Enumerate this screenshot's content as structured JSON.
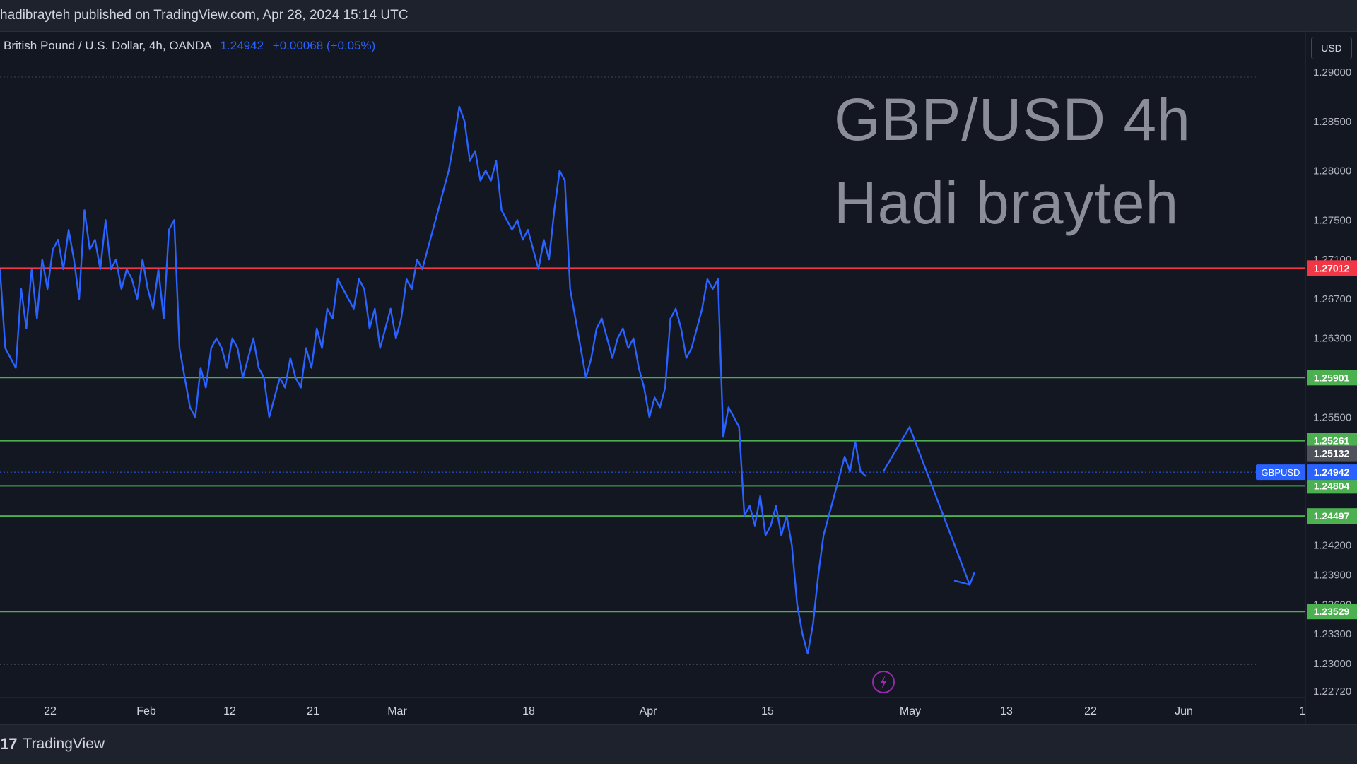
{
  "header": {
    "published_text": "hadibrayteh published on TradingView.com, Apr 28, 2024 15:14 UTC"
  },
  "legend": {
    "symbol": "British Pound / U.S. Dollar, 4h, OANDA",
    "price": "1.24942",
    "change": "+0.00068 (+0.05%)"
  },
  "currency_button": "USD",
  "watermark": {
    "line1": "GBP/USD 4h",
    "line2": "Hadi brayteh"
  },
  "footer": {
    "brand": "TradingView",
    "logo_glyph": "17"
  },
  "icons": {
    "lightning": "lightning-icon",
    "logo": "tradingview-logo-icon"
  },
  "colors": {
    "background": "#131722",
    "price_line": "#2962ff",
    "resistance": "#f23645",
    "support": "#4caf50",
    "badge_gray": "#4f525a"
  },
  "chart_data": {
    "type": "line",
    "title": "",
    "xlabel": "",
    "ylabel": "",
    "ylim": [
      1.2272,
      1.2938
    ],
    "x_ticks": [
      "22",
      "Feb",
      "12",
      "21",
      "Mar",
      "18",
      "Apr",
      "15",
      "May",
      "13",
      "22",
      "Jun",
      "1"
    ],
    "y_ticks": [
      "1.29000",
      "1.28500",
      "1.28000",
      "1.27500",
      "1.27100",
      "1.26700",
      "1.26300",
      "1.25500",
      "1.24200",
      "1.23900",
      "1.23600",
      "1.23300",
      "1.23000",
      "1.22720"
    ],
    "series": [
      {
        "values": [
          1.27,
          1.262,
          1.261,
          1.26,
          1.268,
          1.264,
          1.27,
          1.265,
          1.271,
          1.268,
          1.272,
          1.273,
          1.27,
          1.274,
          1.271,
          1.267,
          1.276,
          1.272,
          1.273,
          1.27,
          1.275,
          1.27,
          1.271,
          1.268,
          1.27,
          1.269,
          1.267,
          1.271,
          1.268,
          1.266,
          1.27,
          1.265,
          1.274,
          1.275,
          1.262,
          1.259,
          1.256,
          1.255,
          1.26,
          1.258,
          1.262,
          1.263,
          1.262,
          1.26,
          1.263,
          1.262,
          1.259,
          1.261,
          1.263,
          1.26,
          1.259,
          1.255,
          1.257,
          1.259,
          1.258,
          1.261,
          1.259,
          1.258,
          1.262,
          1.26,
          1.264,
          1.262,
          1.266,
          1.265,
          1.269,
          1.268,
          1.267,
          1.266,
          1.269,
          1.268,
          1.264,
          1.266,
          1.262,
          1.264,
          1.266,
          1.263,
          1.265,
          1.269,
          1.268,
          1.271,
          1.27,
          1.272,
          1.274,
          1.276,
          1.278,
          1.28,
          1.283,
          1.2865,
          1.285,
          1.281,
          1.282,
          1.279,
          1.28,
          1.279,
          1.281,
          1.276,
          1.275,
          1.274,
          1.275,
          1.273,
          1.274,
          1.272,
          1.27,
          1.273,
          1.271,
          1.276,
          1.28,
          1.279,
          1.268,
          1.265,
          1.262,
          1.259,
          1.261,
          1.264,
          1.265,
          1.263,
          1.261,
          1.263,
          1.264,
          1.262,
          1.263,
          1.26,
          1.258,
          1.255,
          1.257,
          1.256,
          1.258,
          1.265,
          1.266,
          1.264,
          1.261,
          1.262,
          1.264,
          1.266,
          1.269,
          1.268,
          1.269,
          1.253,
          1.256,
          1.255,
          1.254,
          1.245,
          1.246,
          1.244,
          1.247,
          1.243,
          1.244,
          1.246,
          1.243,
          1.245,
          1.242,
          1.236,
          1.233,
          1.231,
          1.234,
          1.239,
          1.243,
          1.245,
          1.247,
          1.249,
          1.251,
          1.2495,
          1.2525,
          1.2495,
          1.249
        ]
      }
    ],
    "horizontal_levels": [
      {
        "value": 1.27012,
        "label": "1.27012",
        "color": "#f23645"
      },
      {
        "value": 1.25901,
        "label": "1.25901",
        "color": "#4caf50"
      },
      {
        "value": 1.25261,
        "label": "1.25261",
        "color": "#4caf50"
      },
      {
        "value": 1.24804,
        "label": "1.24804",
        "color": "#4caf50"
      },
      {
        "value": 1.24497,
        "label": "1.24497",
        "color": "#4caf50"
      },
      {
        "value": 1.23529,
        "label": "1.23529",
        "color": "#4caf50"
      }
    ],
    "other_price_labels": [
      {
        "value": 1.25132,
        "label": "1.25132",
        "color": "#4f525a"
      },
      {
        "value": 1.24942,
        "label": "1.24942",
        "color": "#2962ff"
      }
    ],
    "current_symbol_badge": "GBPUSD",
    "projection": [
      [
        1.2495,
        1.2495
      ],
      [
        1.2495,
        1.254
      ],
      [
        1.254,
        1.238
      ]
    ],
    "grid": false,
    "legend": "top-left"
  }
}
